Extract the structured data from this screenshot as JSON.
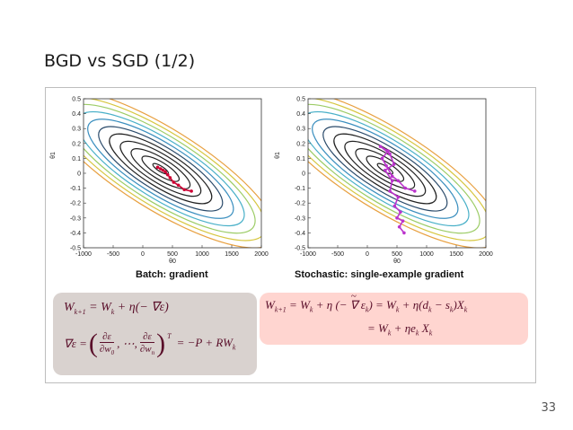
{
  "slide": {
    "title": "BGD vs SGD (1/2)",
    "page_number": "33"
  },
  "chart_data": [
    {
      "type": "contour",
      "caption": "Batch: gradient",
      "xlabel": "θ0",
      "ylabel": "θ1",
      "xlim": [
        -1000,
        2000
      ],
      "ylim": [
        -0.5,
        0.5
      ],
      "x_ticks": [
        "-1000",
        "-500",
        "0",
        "500",
        "1000",
        "1500",
        "2000"
      ],
      "y_ticks": [
        "0.5",
        "0.4",
        "0.3",
        "0.2",
        "0.1",
        "0",
        "-0.1",
        "-0.2",
        "-0.3",
        "-0.4",
        "-0.5"
      ],
      "series": [
        {
          "path_color": "#cc0033",
          "points": [
            [
              820,
              -0.12
            ],
            [
              700,
              -0.11
            ],
            [
              600,
              -0.08
            ],
            [
              520,
              -0.06
            ],
            [
              460,
              -0.03
            ],
            [
              420,
              -0.01
            ],
            [
              380,
              0.01
            ],
            [
              340,
              0.02
            ],
            [
              300,
              0.03
            ],
            [
              250,
              0.04
            ]
          ]
        }
      ]
    },
    {
      "type": "contour",
      "caption": "Stochastic: single-example gradient",
      "xlabel": "θ0",
      "ylabel": "θ1",
      "xlim": [
        -1000,
        2000
      ],
      "ylim": [
        -0.5,
        0.5
      ],
      "x_ticks": [
        "-1000",
        "-500",
        "0",
        "500",
        "1000",
        "1500",
        "2000"
      ],
      "y_ticks": [
        "0.5",
        "0.4",
        "0.3",
        "0.2",
        "0.1",
        "0",
        "-0.1",
        "-0.2",
        "-0.3",
        "-0.4",
        "-0.5"
      ],
      "series": [
        {
          "path_color": "#bb33cc",
          "points": [
            [
              800,
              -0.12
            ],
            [
              640,
              -0.1
            ],
            [
              520,
              -0.05
            ],
            [
              420,
              -0.02
            ],
            [
              320,
              0.05
            ],
            [
              250,
              0.1
            ],
            [
              350,
              0.15
            ],
            [
              220,
              0.18
            ],
            [
              380,
              0.13
            ],
            [
              450,
              0.06
            ],
            [
              300,
              0.02
            ],
            [
              420,
              -0.05
            ],
            [
              380,
              -0.12
            ],
            [
              520,
              -0.16
            ],
            [
              460,
              -0.22
            ],
            [
              560,
              -0.26
            ],
            [
              500,
              -0.3
            ],
            [
              600,
              -0.32
            ],
            [
              540,
              -0.36
            ],
            [
              620,
              -0.4
            ]
          ]
        }
      ]
    }
  ],
  "equations": {
    "batch_line1": "W_{k+1} = W_k + η(−∇ε)",
    "batch_line2": "∇ε = (∂ε/∂w_0, …, ∂ε/∂w_n)^T = −P + RW_k",
    "sgd_line1": "W_{k+1} = W_k + η(−∇̃ε_k) = W_k + η(d_k − s_k)X_k",
    "sgd_line2": "= W_k + ηe_k X_k"
  },
  "colors": {
    "batch_box": "#d9d2cf",
    "sgd_box": "#ffd5d0",
    "equation_text": "#5a0f2a"
  }
}
